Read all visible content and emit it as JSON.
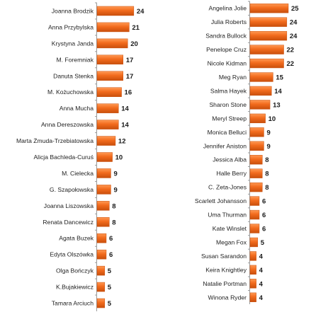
{
  "chart_data": [
    {
      "type": "bar",
      "orientation": "horizontal",
      "categories": [
        "Joanna Brodzik",
        "Anna Przybylska",
        "Krystyna Janda",
        "M. Foremniak",
        "Danuta Stenka",
        "M. Kożuchowska",
        "Anna Mucha",
        "Anna Dereszowska",
        "Marta Żmuda-Trzebiatowska",
        "Alicja Bachleda-Curuś",
        "M. Cielecka",
        "G. Szapołowska",
        "Joanna Liszowska",
        "Renata Dancewicz",
        "Agata Buzek",
        "Edyta Olszówka",
        "Olga Bończyk",
        "K.Bujakiewicz",
        "Tamara Arciuch"
      ],
      "values": [
        24,
        21,
        20,
        17,
        17,
        16,
        14,
        14,
        12,
        10,
        9,
        9,
        8,
        8,
        6,
        6,
        5,
        5,
        5
      ],
      "xlim": [
        0,
        25
      ],
      "grid": false,
      "legend": false,
      "bar_color": "#f26b1d"
    },
    {
      "type": "bar",
      "orientation": "horizontal",
      "categories": [
        "Angelina Jolie",
        "Julia Roberts",
        "Sandra Bullock",
        "Penelope Cruz",
        "Nicole Kidman",
        "Meg Ryan",
        "Salma Hayek",
        "Sharon Stone",
        "Meryl Streep",
        "Monica Belluci",
        "Jennifer Aniston",
        "Jessica Alba",
        "Halle Berry",
        "C. Zeta-Jones",
        "Scarlett Johansson",
        "Uma Thurman",
        "Kate Winslet",
        "Megan Fox",
        "Susan Sarandon",
        "Keira Knightley",
        "Natalie Portman",
        "Winona Ryder"
      ],
      "values": [
        25,
        24,
        24,
        22,
        22,
        15,
        14,
        13,
        10,
        9,
        9,
        8,
        8,
        8,
        6,
        6,
        6,
        5,
        4,
        4,
        4,
        4
      ],
      "xlim": [
        0,
        25
      ],
      "grid": false,
      "legend": false,
      "bar_color": "#f26b1d"
    }
  ],
  "colors": {
    "bar": "#f26b1d",
    "bar_dark": "#c94f0c",
    "bar_light": "#ff9a55",
    "axis": "#9a9a9a",
    "text": "#1f1f1f"
  }
}
